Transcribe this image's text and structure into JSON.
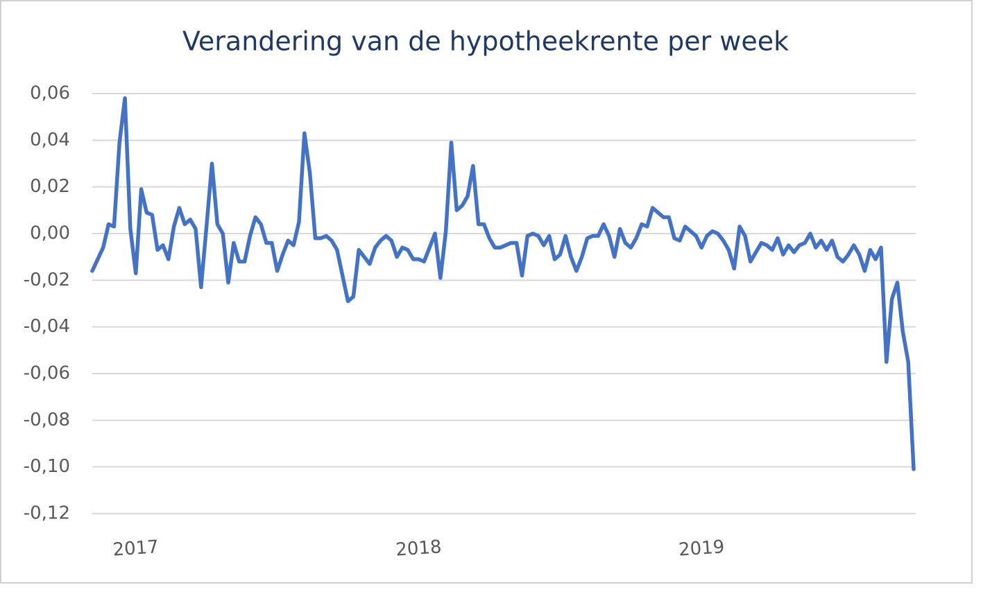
{
  "chart_data": {
    "type": "line",
    "title": "Verandering van de hypotheekrente per week",
    "categories": [
      null,
      null,
      null,
      null,
      null,
      null,
      null,
      null,
      "2017",
      null,
      null,
      null,
      null,
      null,
      null,
      null,
      null,
      null,
      null,
      null,
      null,
      null,
      null,
      null,
      null,
      null,
      null,
      null,
      null,
      null,
      null,
      null,
      null,
      null,
      null,
      null,
      null,
      null,
      null,
      null,
      null,
      null,
      null,
      null,
      null,
      null,
      null,
      null,
      null,
      null,
      null,
      null,
      null,
      null,
      null,
      null,
      null,
      null,
      null,
      null,
      "2018",
      null,
      null,
      null,
      null,
      null,
      null,
      null,
      null,
      null,
      null,
      null,
      null,
      null,
      null,
      null,
      null,
      null,
      null,
      null,
      null,
      null,
      null,
      null,
      null,
      null,
      null,
      null,
      null,
      null,
      null,
      null,
      null,
      null,
      null,
      null,
      null,
      null,
      null,
      null,
      null,
      null,
      null,
      null,
      null,
      null,
      null,
      null,
      null,
      null,
      null,
      null,
      "2019",
      null,
      null,
      null,
      null,
      null,
      null,
      null,
      null,
      null,
      null,
      null,
      null,
      null,
      null,
      null,
      null,
      null,
      null,
      null,
      null,
      null,
      null,
      null,
      null,
      null,
      null,
      null,
      null,
      null,
      null,
      null,
      null,
      null,
      null,
      null,
      null,
      null,
      null,
      null
    ],
    "values": [
      -0.016,
      -0.011,
      -0.006,
      0.004,
      0.003,
      0.039,
      0.058,
      0.002,
      -0.017,
      0.019,
      0.009,
      0.008,
      -0.007,
      -0.005,
      -0.011,
      0.003,
      0.011,
      0.004,
      0.006,
      0.002,
      -0.023,
      0.003,
      0.03,
      0.004,
      0.0,
      -0.021,
      -0.004,
      -0.012,
      -0.012,
      -0.001,
      0.007,
      0.004,
      -0.004,
      -0.004,
      -0.016,
      -0.009,
      -0.003,
      -0.005,
      0.005,
      0.043,
      0.026,
      -0.002,
      -0.002,
      -0.001,
      -0.003,
      -0.007,
      -0.018,
      -0.029,
      -0.027,
      -0.007,
      -0.01,
      -0.013,
      -0.006,
      -0.003,
      -0.001,
      -0.003,
      -0.01,
      -0.006,
      -0.007,
      -0.011,
      -0.011,
      -0.012,
      -0.006,
      0.0,
      -0.019,
      0.001,
      0.039,
      0.01,
      0.012,
      0.016,
      0.029,
      0.004,
      0.004,
      -0.002,
      -0.006,
      -0.006,
      -0.005,
      -0.004,
      -0.004,
      -0.018,
      -0.001,
      0.0,
      -0.001,
      -0.005,
      -0.001,
      -0.011,
      -0.009,
      -0.001,
      -0.01,
      -0.016,
      -0.01,
      -0.002,
      -0.001,
      -0.001,
      0.004,
      -0.001,
      -0.01,
      0.002,
      -0.004,
      -0.006,
      -0.002,
      0.004,
      0.003,
      0.011,
      0.009,
      0.007,
      0.007,
      -0.002,
      -0.003,
      0.003,
      0.001,
      -0.001,
      -0.006,
      -0.001,
      0.001,
      0.0,
      -0.003,
      -0.007,
      -0.015,
      0.003,
      -0.001,
      -0.012,
      -0.008,
      -0.004,
      -0.005,
      -0.007,
      -0.002,
      -0.009,
      -0.005,
      -0.008,
      -0.005,
      -0.004,
      0.0,
      -0.006,
      -0.003,
      -0.007,
      -0.003,
      -0.01,
      -0.012,
      -0.009,
      -0.005,
      -0.009,
      -0.016,
      -0.007,
      -0.011,
      -0.006,
      -0.055,
      -0.028,
      -0.021,
      -0.042,
      -0.055,
      -0.101
    ],
    "color": "#4472c4",
    "ylim": [
      -0.12,
      0.06
    ],
    "yticks": [
      {
        "value": -0.12,
        "label": "-0,12"
      },
      {
        "value": -0.1,
        "label": "-0,10"
      },
      {
        "value": -0.08,
        "label": "-0,08"
      },
      {
        "value": -0.06,
        "label": "-0,06"
      },
      {
        "value": -0.04,
        "label": "-0,04"
      },
      {
        "value": -0.02,
        "label": "-0,02"
      },
      {
        "value": 0,
        "label": "0,00"
      },
      {
        "value": 0.02,
        "label": "0,02"
      },
      {
        "value": 0.04,
        "label": "0,04"
      },
      {
        "value": 0.06,
        "label": "0,06"
      }
    ],
    "grid": true
  }
}
